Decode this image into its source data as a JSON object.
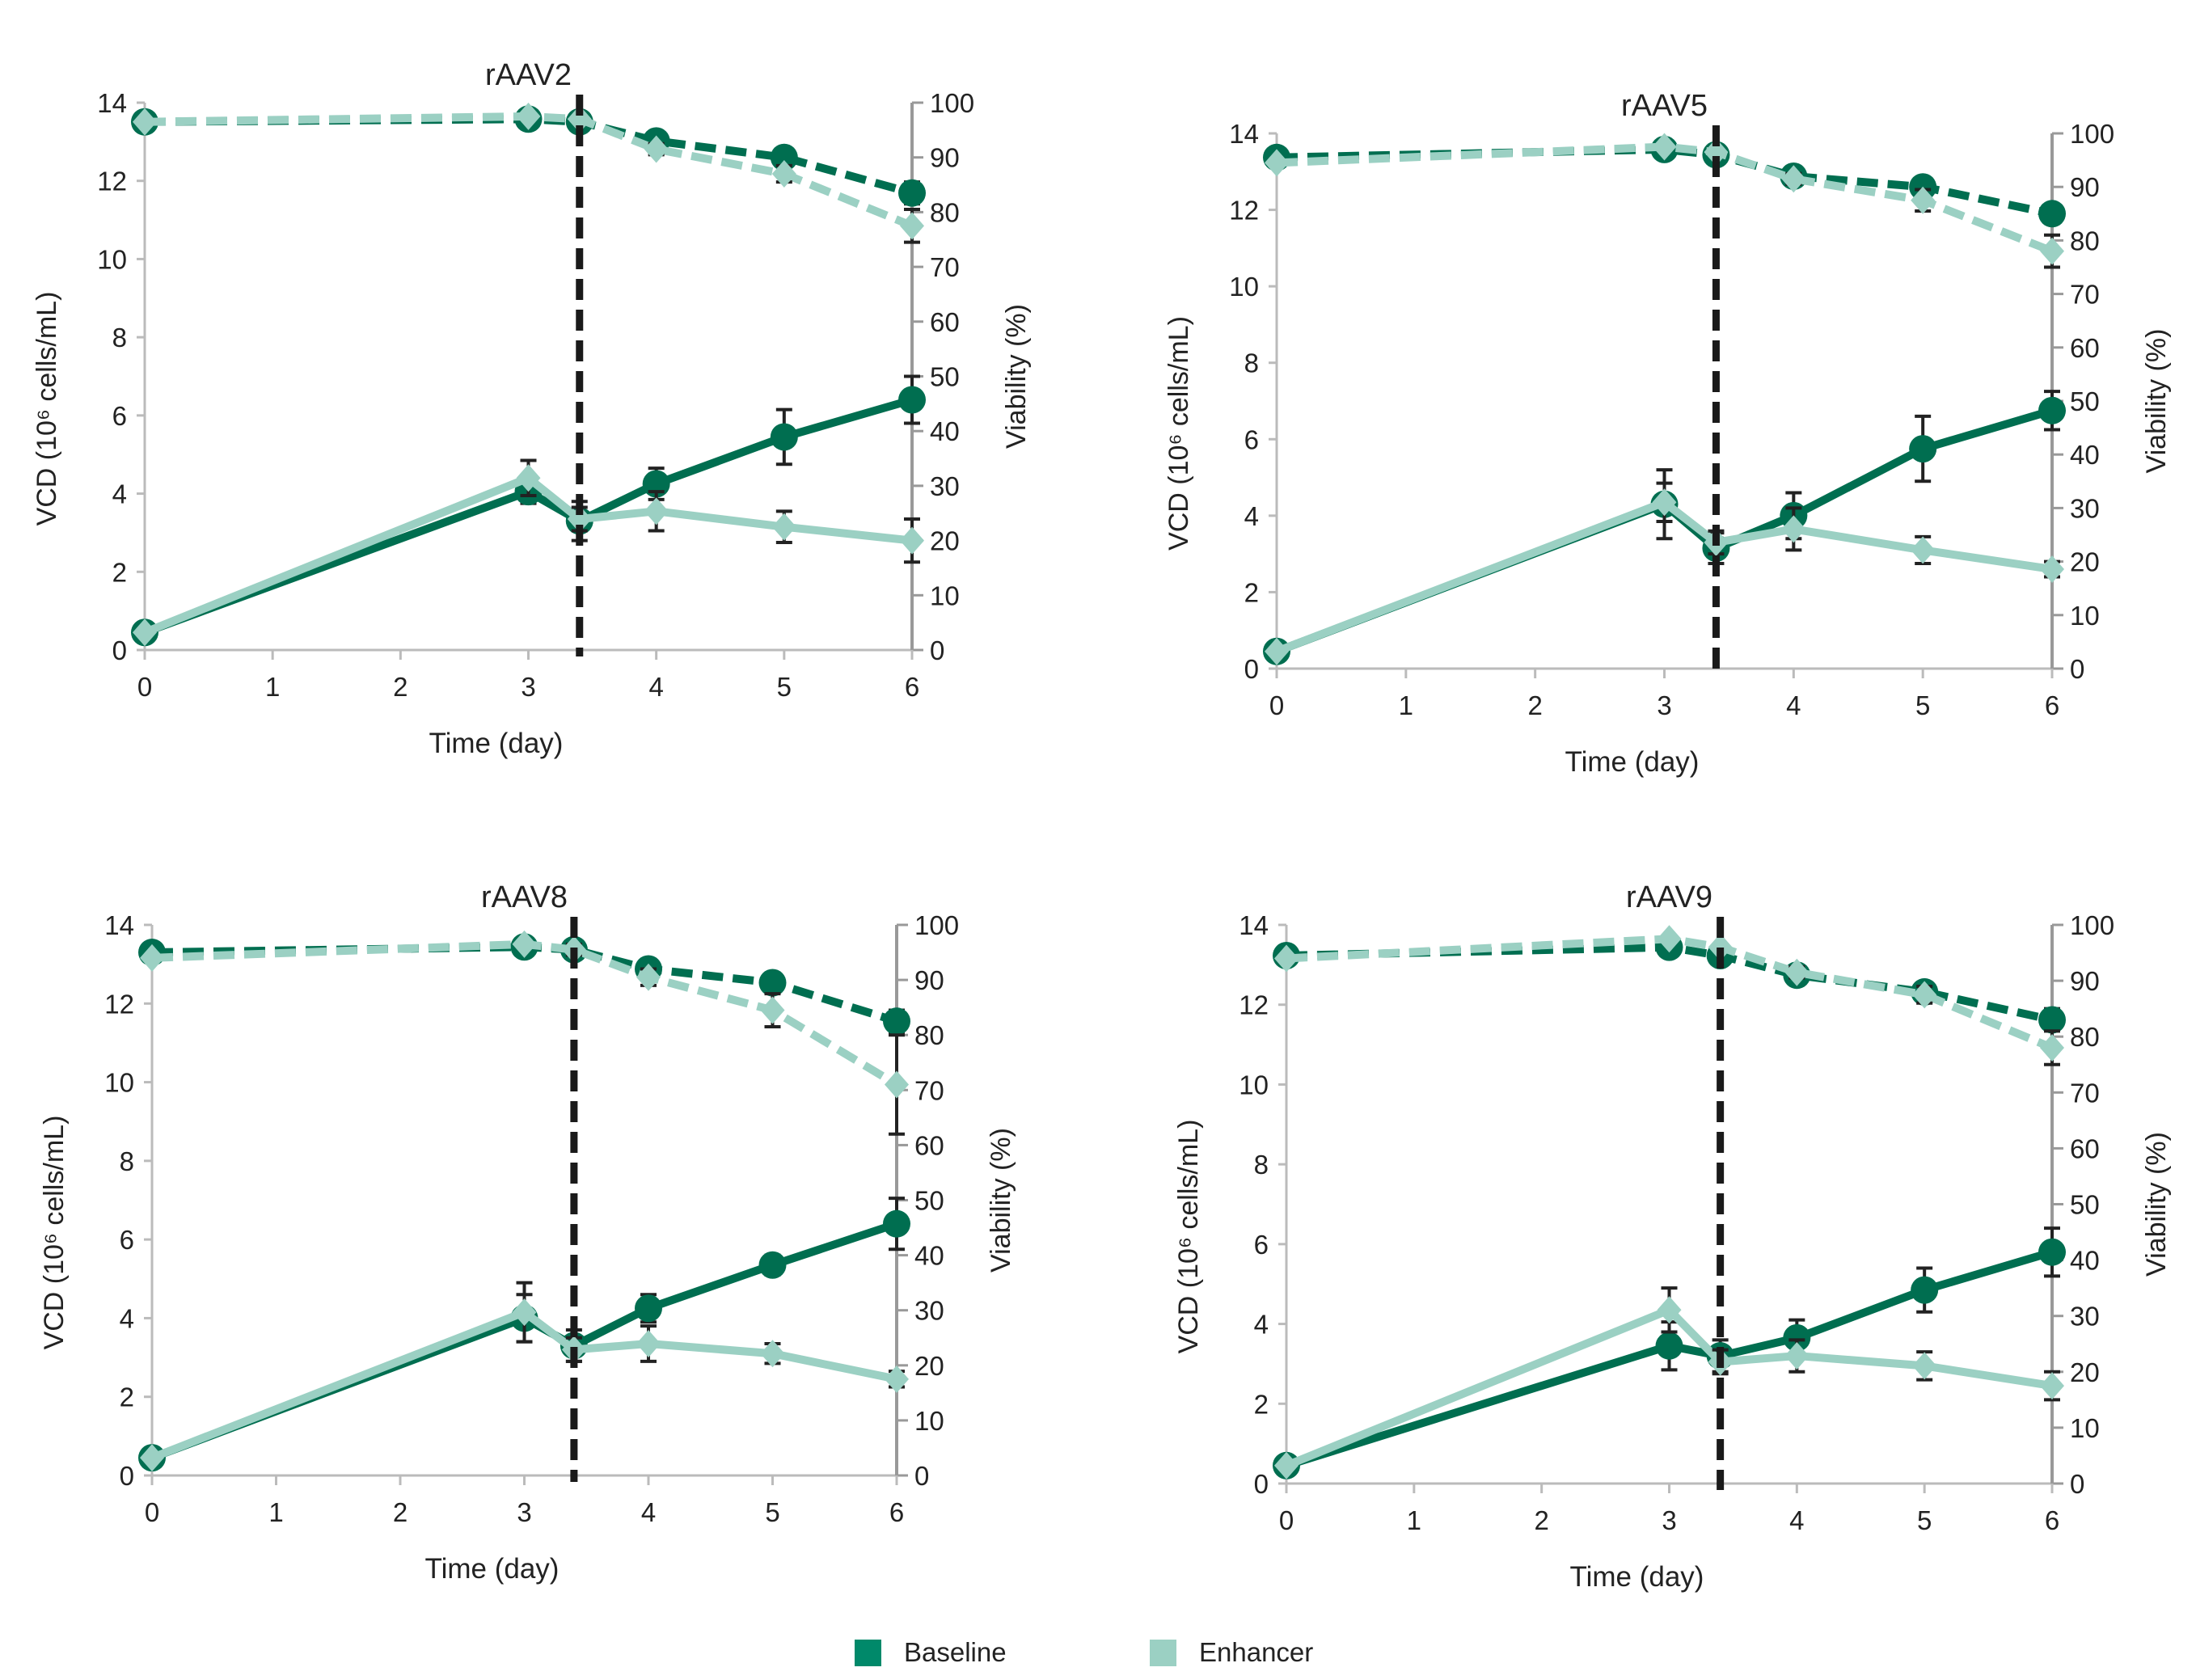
{
  "colors": {
    "baseline": "#006e50",
    "enhancer": "#9bd0c3",
    "transfection_marker": "#1a1a1a",
    "axis": "#bbbbbb",
    "right_axis": "#999999"
  },
  "legend": {
    "position": "bottom-center",
    "items": [
      {
        "label": "Baseline",
        "color": "#00896a"
      },
      {
        "label": "Enhancer",
        "color": "#9bd0c3"
      }
    ]
  },
  "chart_data": [
    {
      "type": "line",
      "title": "rAAV2",
      "xlabel": "Time (day)",
      "ylabel": "VCD (10⁶ cells/mL)",
      "y2label": "Viability (%)",
      "xlim": [
        0,
        6
      ],
      "ylim": [
        0,
        14
      ],
      "y2lim": [
        0,
        100
      ],
      "xticks": [
        0,
        1,
        2,
        3,
        4,
        5,
        6
      ],
      "yticks": [
        0,
        2,
        4,
        6,
        8,
        10,
        12,
        14
      ],
      "y2ticks": [
        0,
        10,
        20,
        30,
        40,
        50,
        60,
        70,
        80,
        90,
        100
      ],
      "vline_x": 3.4,
      "grid": false,
      "x": [
        0,
        3,
        3.4,
        4,
        5,
        6
      ],
      "series": [
        {
          "name": "Baseline",
          "metric": "VCD",
          "axis": "left",
          "values": [
            0.45,
            4.05,
            3.3,
            4.25,
            5.45,
            6.4
          ],
          "error": [
            0,
            0.3,
            0.5,
            0.4,
            0.7,
            0.6
          ]
        },
        {
          "name": "Enhancer",
          "metric": "VCD",
          "axis": "left",
          "values": [
            0.45,
            4.4,
            3.35,
            3.55,
            3.15,
            2.8
          ],
          "error": [
            0,
            0.45,
            0.3,
            0.5,
            0.4,
            0.55
          ]
        },
        {
          "name": "Baseline",
          "metric": "Viability",
          "axis": "right",
          "values": [
            96.5,
            97,
            96.5,
            93,
            90,
            83.5
          ],
          "error": [
            0,
            0.5,
            1,
            1,
            1.5,
            2
          ]
        },
        {
          "name": "Enhancer",
          "metric": "Viability",
          "axis": "right",
          "values": [
            96.5,
            97.5,
            97,
            91.5,
            87,
            77.5
          ],
          "error": [
            0,
            0.5,
            0.5,
            1,
            1.5,
            3
          ]
        }
      ]
    },
    {
      "type": "line",
      "title": "rAAV5",
      "xlabel": "Time (day)",
      "ylabel": "VCD (10⁶ cells/mL)",
      "y2label": "Viability (%)",
      "xlim": [
        0,
        6
      ],
      "ylim": [
        0,
        14
      ],
      "y2lim": [
        0,
        100
      ],
      "xticks": [
        0,
        1,
        2,
        3,
        4,
        5,
        6
      ],
      "yticks": [
        0,
        2,
        4,
        6,
        8,
        10,
        12,
        14
      ],
      "y2ticks": [
        0,
        10,
        20,
        30,
        40,
        50,
        60,
        70,
        80,
        90,
        100
      ],
      "vline_x": 3.4,
      "grid": false,
      "x": [
        0,
        3,
        3.4,
        4,
        5,
        6
      ],
      "series": [
        {
          "name": "Baseline",
          "metric": "VCD",
          "axis": "left",
          "values": [
            0.45,
            4.3,
            3.15,
            4.0,
            5.75,
            6.75
          ],
          "error": [
            0,
            0.9,
            0.4,
            0.6,
            0.85,
            0.5
          ]
        },
        {
          "name": "Enhancer",
          "metric": "VCD",
          "axis": "left",
          "values": [
            0.45,
            4.35,
            3.3,
            3.65,
            3.1,
            2.6
          ],
          "error": [
            0,
            0.5,
            0.3,
            0.55,
            0.35,
            0.2
          ]
        },
        {
          "name": "Baseline",
          "metric": "Viability",
          "axis": "right",
          "values": [
            95.5,
            97,
            96,
            92,
            90,
            85
          ],
          "error": [
            0,
            1,
            1,
            1.5,
            1,
            1
          ]
        },
        {
          "name": "Enhancer",
          "metric": "Viability",
          "axis": "right",
          "values": [
            94.5,
            97.5,
            96.5,
            91.5,
            87.5,
            78
          ],
          "error": [
            0,
            0.5,
            0.5,
            1,
            2,
            3
          ]
        }
      ]
    },
    {
      "type": "line",
      "title": "rAAV8",
      "xlabel": "Time (day)",
      "ylabel": "VCD (10⁶ cells/mL)",
      "y2label": "Viability (%)",
      "xlim": [
        0,
        6
      ],
      "ylim": [
        0,
        14
      ],
      "y2lim": [
        0,
        100
      ],
      "xticks": [
        0,
        1,
        2,
        3,
        4,
        5,
        6
      ],
      "yticks": [
        0,
        2,
        4,
        6,
        8,
        10,
        12,
        14
      ],
      "y2ticks": [
        0,
        10,
        20,
        30,
        40,
        50,
        60,
        70,
        80,
        90,
        100
      ],
      "vline_x": 3.4,
      "grid": false,
      "x": [
        0,
        3,
        3.4,
        4,
        5,
        6
      ],
      "series": [
        {
          "name": "Baseline",
          "metric": "VCD",
          "axis": "left",
          "values": [
            0.45,
            4.0,
            3.3,
            4.25,
            5.35,
            6.4
          ],
          "error": [
            0,
            0.6,
            0.4,
            0.35,
            0.25,
            0.65
          ]
        },
        {
          "name": "Enhancer",
          "metric": "VCD",
          "axis": "left",
          "values": [
            0.45,
            4.15,
            3.2,
            3.35,
            3.1,
            2.45
          ],
          "error": [
            0,
            0.75,
            0.3,
            0.45,
            0.25,
            0.2
          ]
        },
        {
          "name": "Baseline",
          "metric": "Viability",
          "axis": "right",
          "values": [
            95,
            96,
            95.5,
            92,
            89.5,
            82.5
          ],
          "error": [
            0,
            1,
            1,
            1,
            1,
            2
          ]
        },
        {
          "name": "Enhancer",
          "metric": "Viability",
          "axis": "right",
          "values": [
            94,
            96.5,
            95.5,
            90.5,
            84.5,
            71
          ],
          "error": [
            0,
            0.5,
            1,
            1.5,
            3,
            9
          ]
        }
      ]
    },
    {
      "type": "line",
      "title": "rAAV9",
      "xlabel": "Time (day)",
      "ylabel": "VCD (10⁶ cells/mL)",
      "y2label": "Viability (%)",
      "xlim": [
        0,
        6
      ],
      "ylim": [
        0,
        14
      ],
      "y2lim": [
        0,
        100
      ],
      "xticks": [
        0,
        1,
        2,
        3,
        4,
        5,
        6
      ],
      "yticks": [
        0,
        2,
        4,
        6,
        8,
        10,
        12,
        14
      ],
      "y2ticks": [
        0,
        10,
        20,
        30,
        40,
        50,
        60,
        70,
        80,
        90,
        100
      ],
      "vline_x": 3.4,
      "grid": false,
      "x": [
        0,
        3,
        3.4,
        4,
        5,
        6
      ],
      "series": [
        {
          "name": "Baseline",
          "metric": "VCD",
          "axis": "left",
          "values": [
            0.45,
            3.45,
            3.2,
            3.65,
            4.85,
            5.8
          ],
          "error": [
            0,
            0.6,
            0.4,
            0.45,
            0.55,
            0.6
          ]
        },
        {
          "name": "Enhancer",
          "metric": "VCD",
          "axis": "left",
          "values": [
            0.45,
            4.35,
            3.05,
            3.2,
            2.95,
            2.45
          ],
          "error": [
            0,
            0.55,
            0.3,
            0.4,
            0.35,
            0.35
          ]
        },
        {
          "name": "Baseline",
          "metric": "Viability",
          "axis": "right",
          "values": [
            94.5,
            96,
            94.5,
            91,
            88,
            83
          ],
          "error": [
            0,
            1,
            1,
            1,
            1,
            2
          ]
        },
        {
          "name": "Enhancer",
          "metric": "Viability",
          "axis": "right",
          "values": [
            94,
            97.5,
            96,
            91.5,
            87.5,
            78
          ],
          "error": [
            0,
            0.5,
            0.5,
            1,
            1.5,
            3
          ]
        }
      ]
    }
  ]
}
